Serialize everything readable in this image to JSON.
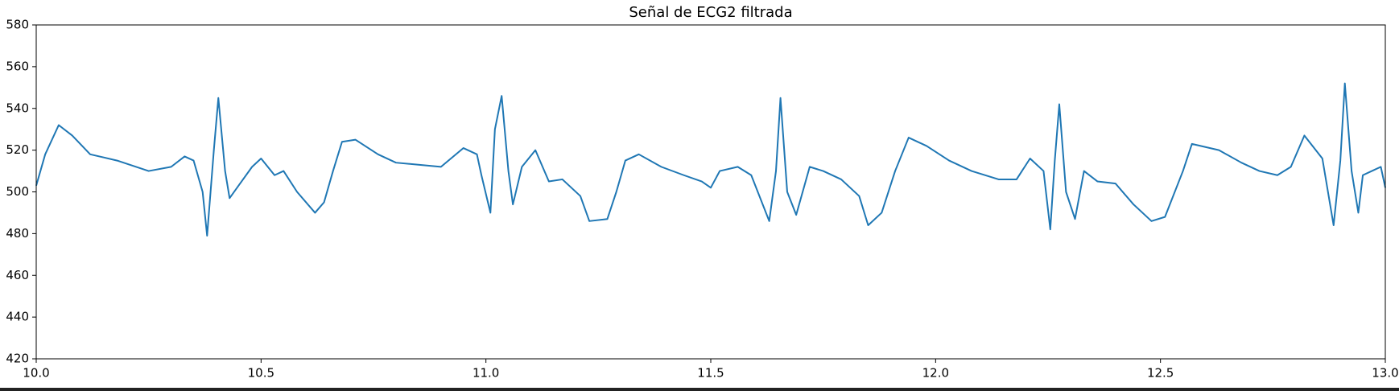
{
  "chart_data": {
    "type": "line",
    "title": "Señal de ECG2 filtrada",
    "x": [
      10.0,
      10.02,
      10.05,
      10.08,
      10.12,
      10.18,
      10.25,
      10.3,
      10.33,
      10.35,
      10.37,
      10.38,
      10.395,
      10.405,
      10.42,
      10.43,
      10.45,
      10.48,
      10.5,
      10.53,
      10.55,
      10.58,
      10.62,
      10.64,
      10.66,
      10.68,
      10.71,
      10.76,
      10.8,
      10.85,
      10.9,
      10.95,
      10.98,
      10.99,
      11.01,
      11.02,
      11.035,
      11.05,
      11.06,
      11.08,
      11.11,
      11.14,
      11.17,
      11.21,
      11.23,
      11.27,
      11.29,
      11.31,
      11.34,
      11.39,
      11.44,
      11.48,
      11.5,
      11.52,
      11.56,
      11.59,
      11.63,
      11.645,
      11.655,
      11.67,
      11.69,
      11.72,
      11.75,
      11.79,
      11.83,
      11.85,
      11.88,
      11.91,
      11.94,
      11.98,
      12.03,
      12.08,
      12.14,
      12.18,
      12.21,
      12.24,
      12.255,
      12.265,
      12.275,
      12.29,
      12.31,
      12.33,
      12.36,
      12.4,
      12.44,
      12.48,
      12.51,
      12.55,
      12.57,
      12.63,
      12.68,
      12.72,
      12.76,
      12.79,
      12.82,
      12.86,
      12.885,
      12.9,
      12.91,
      12.925,
      12.94,
      12.95,
      12.97,
      12.99,
      13.0
    ],
    "series": [
      {
        "color": "#1f77b4",
        "values": [
          503,
          518,
          532,
          527,
          518,
          515,
          510,
          512,
          517,
          515,
          500,
          479,
          520,
          545,
          510,
          497,
          503,
          512,
          516,
          508,
          510,
          500,
          490,
          495,
          510,
          524,
          525,
          518,
          514,
          513,
          512,
          521,
          518,
          508,
          490,
          530,
          546,
          510,
          494,
          512,
          520,
          505,
          506,
          498,
          486,
          487,
          500,
          515,
          518,
          512,
          508,
          505,
          502,
          510,
          512,
          508,
          486,
          510,
          545,
          500,
          489,
          512,
          510,
          506,
          498,
          484,
          490,
          510,
          526,
          522,
          515,
          510,
          506,
          506,
          516,
          510,
          482,
          515,
          542,
          500,
          487,
          510,
          505,
          504,
          494,
          486,
          488,
          510,
          523,
          520,
          514,
          510,
          508,
          512,
          527,
          516,
          484,
          515,
          552,
          510,
          490,
          508,
          510,
          512,
          502
        ]
      }
    ],
    "xlim": [
      10.0,
      13.0
    ],
    "xticks": [
      {
        "value": 10.0,
        "label": "10.0"
      },
      10.5,
      {
        "value": 11.0,
        "label": "11.0"
      },
      11.5,
      {
        "value": 12.0,
        "label": "12.0"
      },
      12.5,
      {
        "value": 13.0,
        "label": "13.0"
      }
    ],
    "ylim": [
      420,
      580
    ],
    "yticks": [
      420,
      440,
      460,
      480,
      500,
      520,
      540,
      560,
      580
    ]
  }
}
